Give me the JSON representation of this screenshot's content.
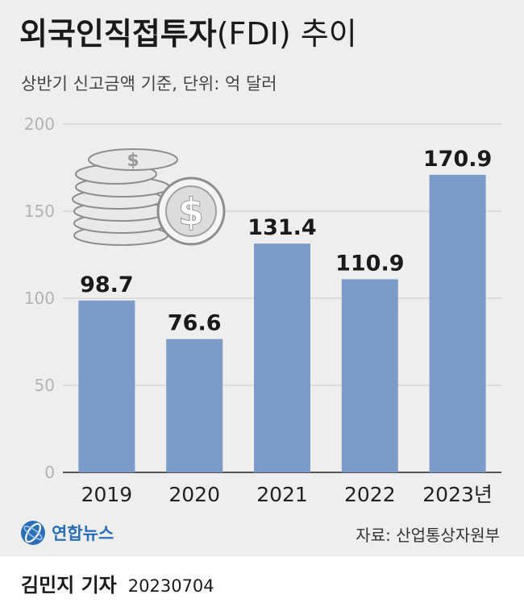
{
  "header": {
    "title_bold": "외국인직접투자",
    "title_light": "(FDI) 추이",
    "subtitle": "상반기 신고금액 기준, 단위: 억 달러"
  },
  "chart_data": {
    "type": "bar",
    "categories": [
      "2019",
      "2020",
      "2021",
      "2022",
      "2023년"
    ],
    "values": [
      98.7,
      76.6,
      131.4,
      110.9,
      170.9
    ],
    "value_labels": [
      "98.7",
      "76.6",
      "131.4",
      "110.9",
      "170.9"
    ],
    "yticks": [
      0,
      50,
      100,
      150,
      200
    ],
    "ylim": [
      0,
      200
    ],
    "grid": true,
    "bar_color": "#7b9cc9",
    "unit": "억 달러"
  },
  "footer": {
    "logo_text": "연합뉴스",
    "source": "자료: 산업통상자원부",
    "author": "김민지 기자",
    "date": "20230704"
  },
  "colors": {
    "panel_background": "#eeeeee",
    "grid": "#cccccc",
    "logo_blue": "#2a6fb8"
  },
  "icons": {
    "illustration": "coin-stack-icon",
    "logo": "yonhap-logo-icon"
  }
}
